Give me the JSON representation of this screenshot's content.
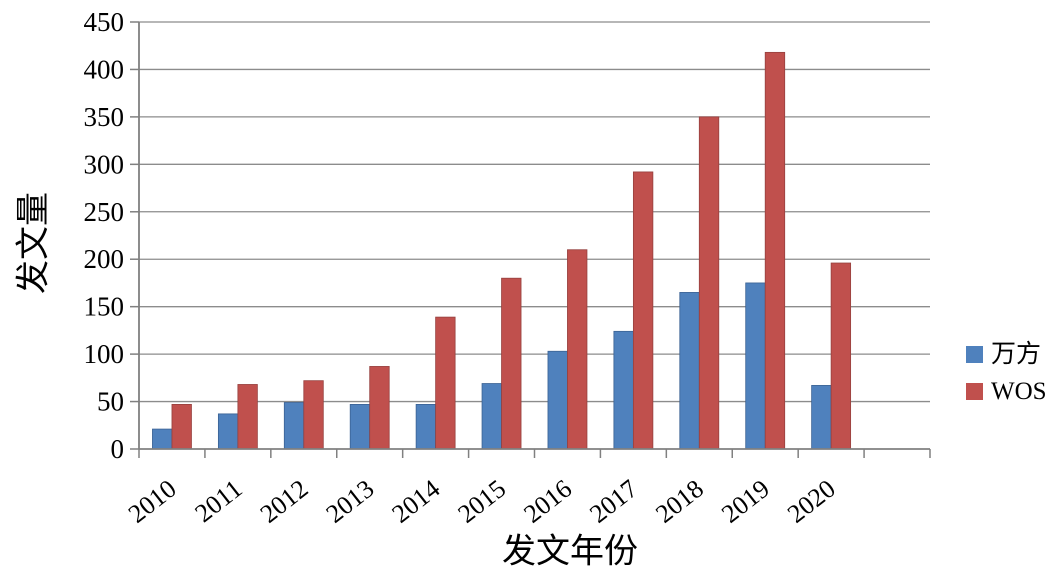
{
  "chart_data": {
    "type": "bar",
    "title": "",
    "categories": [
      "2010",
      "2011",
      "2012",
      "2013",
      "2014",
      "2015",
      "2016",
      "2017",
      "2018",
      "2019",
      "2020"
    ],
    "series": [
      {
        "name": "万方",
        "color": "#4F81BD",
        "edge": "#3A6193",
        "values": [
          21,
          37,
          49,
          47,
          47,
          69,
          103,
          124,
          165,
          175,
          67
        ]
      },
      {
        "name": "WOS",
        "color": "#C0504D",
        "edge": "#96403E",
        "values": [
          47,
          68,
          72,
          87,
          139,
          180,
          210,
          292,
          350,
          418,
          196
        ]
      }
    ],
    "xlabel": "发文年份",
    "ylabel": "发文量",
    "ylim": [
      0,
      450
    ],
    "yticks": [
      0,
      50,
      100,
      150,
      200,
      250,
      300,
      350,
      400,
      450
    ],
    "grid": true,
    "legend_position": "right",
    "axis_color": "#808080",
    "grid_color": "#8c8c8c",
    "tick_label_color": "#000000"
  }
}
